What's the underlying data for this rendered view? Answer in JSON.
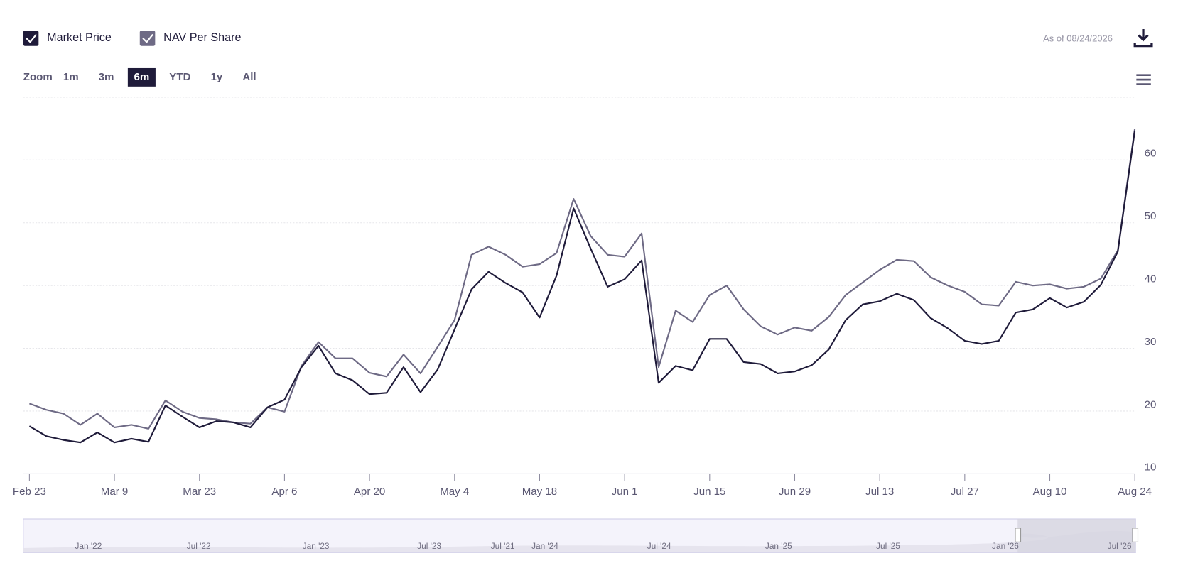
{
  "ui": {
    "zoom_label": "Zoom",
    "zoom_options": [
      "1m",
      "3m",
      "6m",
      "YTD",
      "1y",
      "All"
    ],
    "zoom_selected": "6m",
    "as_of": "As of 08/24/2026"
  },
  "chart_data": {
    "type": "line",
    "categories": [
      "Feb 23",
      null,
      null,
      null,
      null,
      "Mar 9",
      null,
      null,
      null,
      null,
      "Mar 23",
      null,
      null,
      null,
      null,
      "Apr 6",
      null,
      null,
      null,
      null,
      "Apr 20",
      null,
      null,
      null,
      null,
      "May 4",
      null,
      null,
      null,
      null,
      "May 18",
      null,
      null,
      null,
      null,
      "Jun 1",
      null,
      null,
      null,
      null,
      "Jun 15",
      null,
      null,
      null,
      null,
      "Jun 29",
      null,
      null,
      null,
      null,
      "Jul 13",
      null,
      null,
      null,
      null,
      "Jul 27",
      null,
      null,
      null,
      null,
      "Aug 10",
      null,
      null,
      null,
      null,
      "Aug 24"
    ],
    "series": [
      {
        "name": "Market Price",
        "color": "#1f1b3a",
        "values": [
          17.6,
          16,
          15.4,
          15,
          16.6,
          15,
          15.6,
          15.1,
          20.9,
          19.1,
          17.4,
          18.4,
          18.2,
          17.4,
          20.6,
          21.8,
          27,
          30.4,
          26,
          24.9,
          22.7,
          22.9,
          27,
          23,
          26.6,
          33,
          39.4,
          42.2,
          40.4,
          38.9,
          34.9,
          41.6,
          52.3,
          45.9,
          39.8,
          41,
          44,
          24.5,
          27.2,
          26.5,
          31.5,
          31.5,
          27.8,
          27.5,
          26,
          26.3,
          27.3,
          29.8,
          34.5,
          37,
          37.5,
          38.7,
          37.7,
          34.8,
          33.2,
          31.2,
          30.7,
          31.2,
          35.7,
          36.2,
          38,
          36.5,
          37.4,
          40.1,
          45.4,
          64.7
        ]
      },
      {
        "name": "NAV Per Share",
        "color": "#6e6a85",
        "values": [
          21.2,
          20.2,
          19.6,
          17.8,
          19.6,
          17.4,
          17.8,
          17.2,
          21.7,
          19.9,
          18.9,
          18.7,
          18.2,
          18,
          20.6,
          19.9,
          27.2,
          31,
          28.4,
          28.4,
          26.1,
          25.5,
          29,
          26,
          30.2,
          34.5,
          44.9,
          46.2,
          44.9,
          43,
          43.4,
          45.2,
          53.8,
          47.9,
          44.9,
          44.6,
          48.3,
          27,
          36,
          34.2,
          38.5,
          40,
          36.2,
          33.5,
          32.2,
          33.3,
          32.8,
          35,
          38.5,
          40.5,
          42.5,
          44.1,
          43.9,
          41.3,
          40,
          39,
          37,
          36.8,
          40.6,
          40,
          40.2,
          39.5,
          39.8,
          41.1,
          45.6,
          65
        ]
      }
    ],
    "ylim": [
      10,
      70
    ],
    "yticks": [
      10,
      20,
      30,
      40,
      50,
      60
    ],
    "grid": true,
    "navigator_labels": [
      "Jan '22",
      "Jul '22",
      "Jan '23",
      "Jul '23",
      "Jul '21",
      "Jan '24",
      "Jul '24",
      "Jan '25",
      "Jul '25",
      "Jan '26",
      "Jul '26"
    ]
  }
}
